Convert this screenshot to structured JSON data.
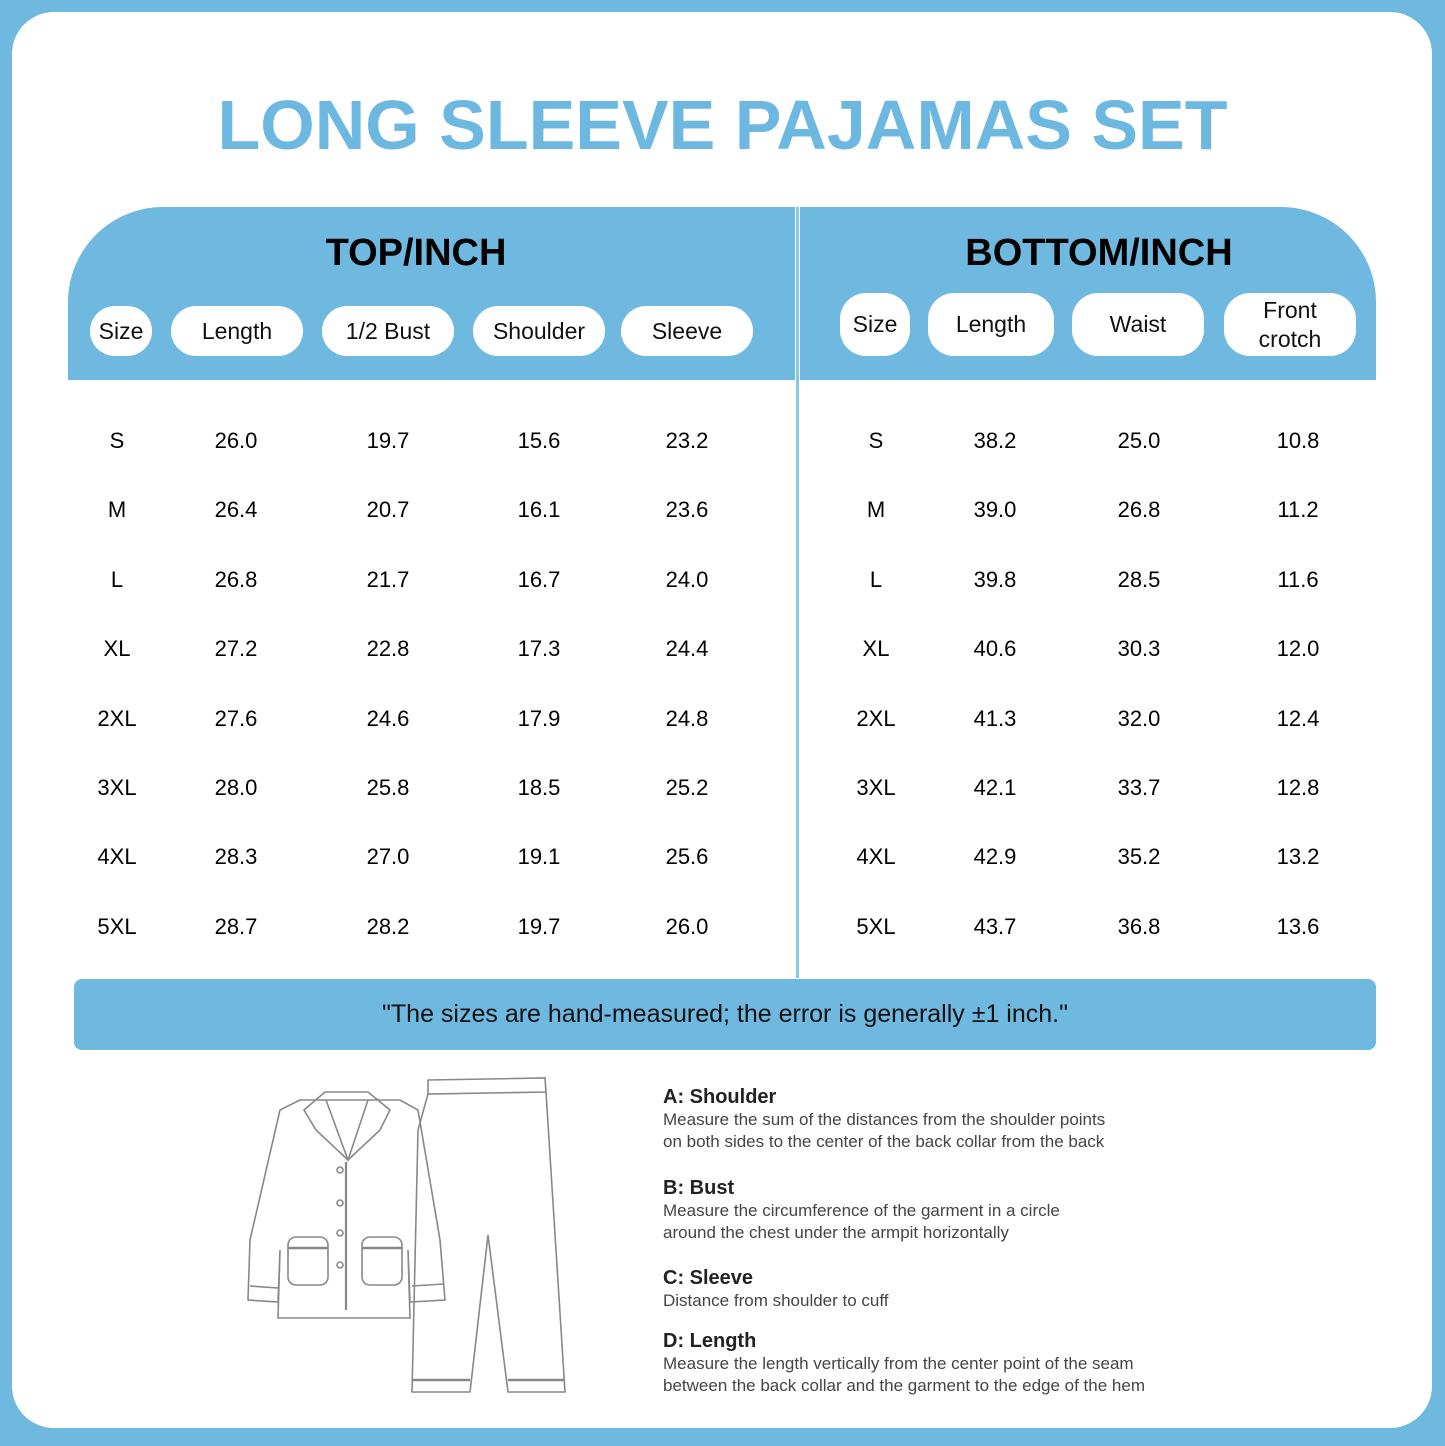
{
  "title": "LONG SLEEVE PAJAMAS SET",
  "top": {
    "title": "TOP/INCH",
    "headers": [
      "Size",
      "Length",
      "1/2 Bust",
      "Shoulder",
      "Sleeve"
    ],
    "rows": [
      [
        "S",
        "26.0",
        "19.7",
        "15.6",
        "23.2"
      ],
      [
        "M",
        "26.4",
        "20.7",
        "16.1",
        "23.6"
      ],
      [
        "L",
        "26.8",
        "21.7",
        "16.7",
        "24.0"
      ],
      [
        "XL",
        "27.2",
        "22.8",
        "17.3",
        "24.4"
      ],
      [
        "2XL",
        "27.6",
        "24.6",
        "17.9",
        "24.8"
      ],
      [
        "3XL",
        "28.0",
        "25.8",
        "18.5",
        "25.2"
      ],
      [
        "4XL",
        "28.3",
        "27.0",
        "19.1",
        "25.6"
      ],
      [
        "5XL",
        "28.7",
        "28.2",
        "19.7",
        "26.0"
      ]
    ]
  },
  "bottom": {
    "title": "BOTTOM/INCH",
    "headers": [
      "Size",
      "Length",
      "Waist",
      "Front crotch"
    ],
    "rows": [
      [
        "S",
        "38.2",
        "25.0",
        "10.8"
      ],
      [
        "M",
        "39.0",
        "26.8",
        "11.2"
      ],
      [
        "L",
        "39.8",
        "28.5",
        "11.6"
      ],
      [
        "XL",
        "40.6",
        "30.3",
        "12.0"
      ],
      [
        "2XL",
        "41.3",
        "32.0",
        "12.4"
      ],
      [
        "3XL",
        "42.1",
        "33.7",
        "12.8"
      ],
      [
        "4XL",
        "42.9",
        "35.2",
        "13.2"
      ],
      [
        "5XL",
        "43.7",
        "36.8",
        "13.6"
      ]
    ]
  },
  "note": "\"The sizes are hand-measured; the error is generally ±1 inch.\"",
  "descriptions": [
    {
      "heading": "A: Shoulder",
      "lines": [
        "Measure the sum of the distances from the shoulder points",
        "on both sides to the center of the back collar from the back"
      ]
    },
    {
      "heading": "B: Bust",
      "lines": [
        "Measure the circumference of the garment in a circle",
        "around the chest under the armpit horizontally"
      ]
    },
    {
      "heading": "C: Sleeve",
      "lines": [
        "Distance from shoulder to cuff"
      ]
    },
    {
      "heading": "D: Length",
      "lines": [
        "Measure the length vertically from the center point of the seam",
        "between the back collar and the garment to the edge of the hem"
      ]
    }
  ],
  "colors": {
    "accent": "#6fb9e0",
    "title": "#6db8e1"
  }
}
